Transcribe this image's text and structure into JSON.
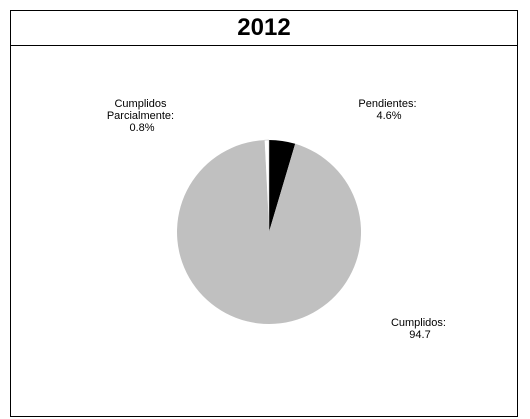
{
  "chart_data": {
    "type": "pie",
    "title": "2012",
    "slices": [
      {
        "label_lines": [
          "Cumplidos:",
          "94.7"
        ],
        "value": 94.7,
        "color": "#c0c0c0"
      },
      {
        "label_lines": [
          "Cumplidos",
          "Parcialmente:",
          "0.8%"
        ],
        "value": 0.8,
        "color": "#ffffff"
      },
      {
        "label_lines": [
          "Pendientes:",
          "4.6%"
        ],
        "value": 4.6,
        "color": "#000000"
      }
    ],
    "start_slice_order": [
      "Pendientes",
      "Cumplidos",
      "Cumplidos Parcialmente"
    ],
    "legend": "none"
  }
}
